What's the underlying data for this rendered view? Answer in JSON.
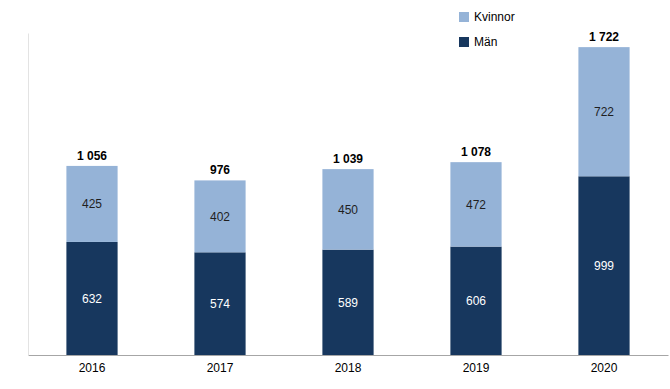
{
  "chart_data": {
    "type": "bar",
    "stacked": true,
    "data_labels": true,
    "tick_labels": "x",
    "legend": "upper right",
    "categories": [
      "2016",
      "2017",
      "2018",
      "2019",
      "2020"
    ],
    "series": [
      {
        "name": "Män",
        "color": "#17375e",
        "values": [
          632,
          574,
          589,
          606,
          999
        ]
      },
      {
        "name": "Kvinnor",
        "color": "#95b3d7",
        "values": [
          425,
          402,
          450,
          472,
          722
        ]
      }
    ],
    "totals": [
      1056,
      976,
      1039,
      1078,
      1722
    ],
    "total_labels": [
      "1 056",
      "976",
      "1 039",
      "1 078",
      "1 722"
    ],
    "ylim": [
      0,
      1800
    ],
    "yticks": []
  }
}
